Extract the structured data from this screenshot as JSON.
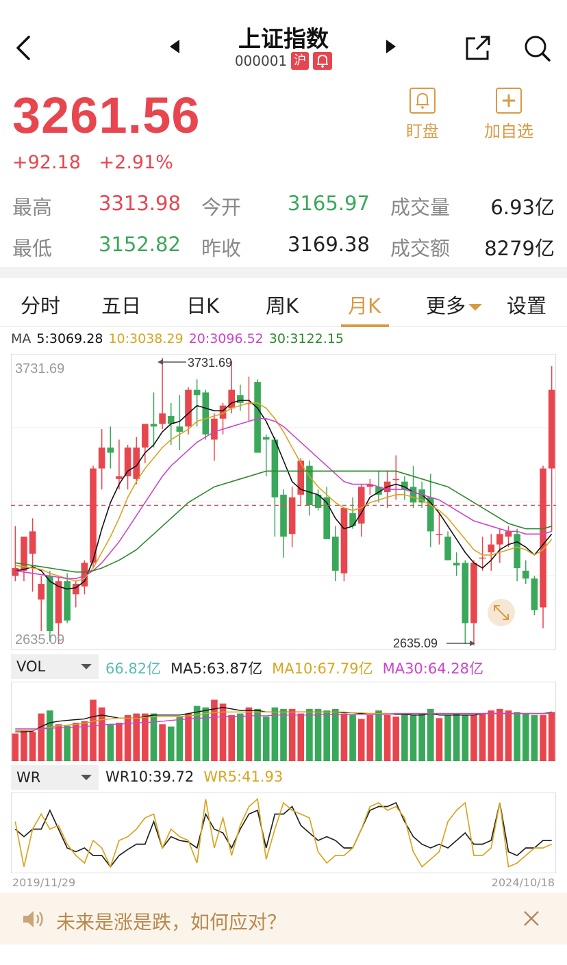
{
  "header": {
    "title": "上证指数",
    "code": "000001",
    "market_badge": "沪"
  },
  "quote": {
    "price": "3261.56",
    "change": "+92.18",
    "change_pct": "+2.91%"
  },
  "actions": {
    "watch": "盯盘",
    "add": "加自选"
  },
  "stats": {
    "high_label": "最高",
    "high": "3313.98",
    "open_label": "今开",
    "open": "3165.97",
    "volume_label": "成交量",
    "volume": "6.93亿",
    "low_label": "最低",
    "low": "3152.82",
    "prev_close_label": "昨收",
    "prev_close": "3169.38",
    "amount_label": "成交额",
    "amount": "8279亿"
  },
  "tabs": [
    "分时",
    "五日",
    "日K",
    "周K",
    "月K",
    "更多",
    "设置"
  ],
  "ma": {
    "title": "MA",
    "ma5": "5:3069.28",
    "ma10": "10:3038.29",
    "ma20": "20:3096.52",
    "ma30": "30:3122.15"
  },
  "colors": {
    "up": "#e8464f",
    "down": "#3aa85a",
    "ma5": "#111111",
    "ma10": "#d9a520",
    "ma20": "#cc44cc",
    "ma30": "#2a8a2a",
    "accent": "#d99a44"
  },
  "chart_data": [
    {
      "type": "candlestick",
      "title": "",
      "y_max_label": "3731.69",
      "y_min_label": "2635.09",
      "high_marker": "3731.69",
      "low_marker": "2635.09",
      "ref_price": 3169.38,
      "ylim": [
        2635.09,
        3731.69
      ],
      "candles": [
        {
          "o": 2900,
          "h": 3090,
          "l": 2880,
          "c": 2930
        },
        {
          "o": 2920,
          "h": 3050,
          "l": 2880,
          "c": 3050
        },
        {
          "o": 2985,
          "h": 3120,
          "l": 2840,
          "c": 3070
        },
        {
          "o": 2810,
          "h": 2900,
          "l": 2690,
          "c": 2870
        },
        {
          "o": 2900,
          "h": 2920,
          "l": 2650,
          "c": 2690
        },
        {
          "o": 2720,
          "h": 2900,
          "l": 2640,
          "c": 2880
        },
        {
          "o": 2880,
          "h": 2910,
          "l": 2720,
          "c": 2730
        },
        {
          "o": 2830,
          "h": 2880,
          "l": 2780,
          "c": 2870
        },
        {
          "o": 2860,
          "h": 2960,
          "l": 2830,
          "c": 2950
        },
        {
          "o": 2950,
          "h": 3320,
          "l": 2930,
          "c": 3310
        },
        {
          "o": 3310,
          "h": 3460,
          "l": 3230,
          "c": 3390
        },
        {
          "o": 3390,
          "h": 3470,
          "l": 3310,
          "c": 3370
        },
        {
          "o": 3270,
          "h": 3420,
          "l": 3230,
          "c": 3280
        },
        {
          "o": 3280,
          "h": 3400,
          "l": 3230,
          "c": 3390
        },
        {
          "o": 3270,
          "h": 3430,
          "l": 3250,
          "c": 3390
        },
        {
          "o": 3390,
          "h": 3480,
          "l": 3330,
          "c": 3480
        },
        {
          "o": 3480,
          "h": 3600,
          "l": 3390,
          "c": 3470
        },
        {
          "o": 3480,
          "h": 3731.69,
          "l": 3460,
          "c": 3520
        },
        {
          "o": 3510,
          "h": 3560,
          "l": 3400,
          "c": 3480
        },
        {
          "o": 3470,
          "h": 3590,
          "l": 3380,
          "c": 3450
        },
        {
          "o": 3470,
          "h": 3620,
          "l": 3440,
          "c": 3610
        },
        {
          "o": 3610,
          "h": 3650,
          "l": 3470,
          "c": 3590
        },
        {
          "o": 3600,
          "h": 3610,
          "l": 3420,
          "c": 3440
        },
        {
          "o": 3420,
          "h": 3520,
          "l": 3340,
          "c": 3500
        },
        {
          "o": 3500,
          "h": 3560,
          "l": 3440,
          "c": 3550
        },
        {
          "o": 3540,
          "h": 3720,
          "l": 3520,
          "c": 3610
        },
        {
          "o": 3590,
          "h": 3630,
          "l": 3530,
          "c": 3560
        },
        {
          "o": 3560,
          "h": 3660,
          "l": 3490,
          "c": 3560
        },
        {
          "o": 3640,
          "h": 3650,
          "l": 3380,
          "c": 3370
        },
        {
          "o": 3430,
          "h": 3440,
          "l": 3280,
          "c": 3420
        },
        {
          "o": 3420,
          "h": 3430,
          "l": 3050,
          "c": 3200
        },
        {
          "o": 3210,
          "h": 3230,
          "l": 2970,
          "c": 3050
        },
        {
          "o": 3060,
          "h": 3240,
          "l": 3010,
          "c": 3200
        },
        {
          "o": 3210,
          "h": 3350,
          "l": 3170,
          "c": 3340
        },
        {
          "o": 3320,
          "h": 3340,
          "l": 3130,
          "c": 3170
        },
        {
          "o": 3210,
          "h": 3230,
          "l": 3150,
          "c": 3160
        },
        {
          "o": 3200,
          "h": 3240,
          "l": 3050,
          "c": 3040
        },
        {
          "o": 3050,
          "h": 3090,
          "l": 2880,
          "c": 2920
        },
        {
          "o": 2910,
          "h": 3160,
          "l": 2880,
          "c": 3160
        },
        {
          "o": 3140,
          "h": 3200,
          "l": 3080,
          "c": 3090
        },
        {
          "o": 3100,
          "h": 3250,
          "l": 3050,
          "c": 3240
        },
        {
          "o": 3240,
          "h": 3270,
          "l": 3210,
          "c": 3250
        },
        {
          "o": 3240,
          "h": 3300,
          "l": 3180,
          "c": 3210
        },
        {
          "o": 3220,
          "h": 3300,
          "l": 3160,
          "c": 3260
        },
        {
          "o": 3270,
          "h": 3360,
          "l": 3190,
          "c": 3270
        },
        {
          "o": 3260,
          "h": 3280,
          "l": 3190,
          "c": 3230
        },
        {
          "o": 3240,
          "h": 3320,
          "l": 3160,
          "c": 3180
        },
        {
          "o": 3230,
          "h": 3260,
          "l": 3160,
          "c": 3180
        },
        {
          "o": 3200,
          "h": 3290,
          "l": 3010,
          "c": 3070
        },
        {
          "o": 3060,
          "h": 3140,
          "l": 3020,
          "c": 3060
        },
        {
          "o": 3050,
          "h": 3070,
          "l": 2970,
          "c": 2960
        },
        {
          "o": 2950,
          "h": 2990,
          "l": 2900,
          "c": 2940
        },
        {
          "o": 2950,
          "h": 2960,
          "l": 2640,
          "c": 2720
        },
        {
          "o": 2720,
          "h": 2960,
          "l": 2635.09,
          "c": 2950
        },
        {
          "o": 2970,
          "h": 3050,
          "l": 2920,
          "c": 2970
        },
        {
          "o": 2990,
          "h": 3060,
          "l": 2920,
          "c": 3020
        },
        {
          "o": 3020,
          "h": 3080,
          "l": 2950,
          "c": 3060
        },
        {
          "o": 3050,
          "h": 3090,
          "l": 3010,
          "c": 3070
        },
        {
          "o": 3060,
          "h": 3080,
          "l": 2880,
          "c": 2930
        },
        {
          "o": 2920,
          "h": 2960,
          "l": 2870,
          "c": 2890
        },
        {
          "o": 2890,
          "h": 2900,
          "l": 2750,
          "c": 2770
        },
        {
          "o": 2780,
          "h": 3320,
          "l": 2700,
          "c": 3310
        },
        {
          "o": 3310,
          "h": 3700,
          "l": 3070,
          "c": 3610
        }
      ],
      "ma_lines": {
        "ma5": [
          2920,
          2925,
          2935,
          2920,
          2880,
          2860,
          2850,
          2855,
          2880,
          2960,
          3080,
          3180,
          3250,
          3300,
          3320,
          3370,
          3400,
          3450,
          3480,
          3490,
          3520,
          3550,
          3540,
          3530,
          3530,
          3560,
          3570,
          3570,
          3540,
          3490,
          3420,
          3340,
          3260,
          3230,
          3220,
          3210,
          3180,
          3120,
          3080,
          3090,
          3140,
          3200,
          3220,
          3240,
          3250,
          3240,
          3220,
          3210,
          3180,
          3140,
          3090,
          3040,
          2990,
          2950,
          2930,
          2960,
          3000,
          3020,
          3030,
          3010,
          2980,
          3020,
          3060
        ],
        "ma10": [
          2940,
          2935,
          2930,
          2925,
          2910,
          2900,
          2890,
          2880,
          2890,
          2930,
          2990,
          3050,
          3120,
          3200,
          3260,
          3310,
          3350,
          3390,
          3420,
          3440,
          3460,
          3490,
          3500,
          3510,
          3520,
          3540,
          3550,
          3560,
          3560,
          3540,
          3500,
          3450,
          3390,
          3330,
          3280,
          3240,
          3210,
          3180,
          3160,
          3150,
          3160,
          3180,
          3190,
          3200,
          3210,
          3210,
          3200,
          3190,
          3170,
          3150,
          3120,
          3080,
          3040,
          3000,
          2980,
          2980,
          2990,
          3000,
          3010,
          3000,
          2980,
          3000,
          3040
        ],
        "ma20": [
          2920,
          2915,
          2910,
          2905,
          2900,
          2895,
          2890,
          2890,
          2900,
          2920,
          2950,
          2990,
          3030,
          3080,
          3130,
          3180,
          3230,
          3280,
          3320,
          3350,
          3380,
          3410,
          3430,
          3450,
          3460,
          3470,
          3480,
          3490,
          3500,
          3500,
          3490,
          3470,
          3440,
          3410,
          3380,
          3350,
          3320,
          3290,
          3260,
          3250,
          3250,
          3250,
          3240,
          3230,
          3230,
          3230,
          3220,
          3210,
          3200,
          3190,
          3170,
          3150,
          3130,
          3110,
          3100,
          3090,
          3080,
          3070,
          3070,
          3060,
          3060,
          3060,
          3070
        ],
        "ma30": [
          2950,
          2945,
          2940,
          2935,
          2930,
          2925,
          2920,
          2915,
          2915,
          2920,
          2930,
          2945,
          2960,
          2980,
          3000,
          3030,
          3060,
          3090,
          3120,
          3150,
          3180,
          3200,
          3220,
          3240,
          3250,
          3260,
          3270,
          3280,
          3290,
          3300,
          3300,
          3300,
          3300,
          3300,
          3300,
          3300,
          3300,
          3300,
          3300,
          3300,
          3300,
          3300,
          3300,
          3300,
          3300,
          3290,
          3280,
          3270,
          3260,
          3250,
          3240,
          3220,
          3200,
          3180,
          3160,
          3140,
          3120,
          3100,
          3090,
          3080,
          3080,
          3080,
          3090
        ]
      }
    },
    {
      "type": "bar",
      "title": "",
      "indicator": "VOL",
      "legend": {
        "value": "66.82亿",
        "ma5": "MA5:63.87亿",
        "ma10": "MA10:67.79亿",
        "ma30": "MA30:64.28亿"
      },
      "ylim": [
        0,
        100
      ],
      "values": [
        36,
        40,
        38,
        62,
        66,
        48,
        46,
        50,
        52,
        80,
        70,
        48,
        50,
        60,
        62,
        62,
        62,
        48,
        45,
        58,
        62,
        72,
        70,
        80,
        75,
        60,
        62,
        70,
        68,
        58,
        70,
        68,
        68,
        62,
        68,
        68,
        66,
        68,
        62,
        60,
        55,
        60,
        66,
        60,
        58,
        62,
        60,
        62,
        68,
        56,
        60,
        62,
        60,
        60,
        62,
        66,
        68,
        66,
        64,
        62,
        60,
        60,
        64
      ],
      "ma5": [
        38,
        38,
        39,
        45,
        50,
        52,
        53,
        54,
        55,
        58,
        60,
        58,
        56,
        56,
        56,
        58,
        60,
        60,
        60,
        60,
        62,
        64,
        66,
        68,
        70,
        68,
        66,
        66,
        66,
        64,
        64,
        64,
        64,
        64,
        64,
        64,
        64,
        64,
        63,
        63,
        62,
        62,
        62,
        62,
        61,
        61,
        60,
        60,
        62,
        60,
        60,
        60,
        60,
        60,
        62,
        62,
        62,
        62,
        62,
        62,
        62,
        62,
        64
      ],
      "ma10": [
        40,
        40,
        40,
        42,
        44,
        46,
        47,
        48,
        49,
        52,
        54,
        55,
        56,
        56,
        56,
        57,
        58,
        58,
        58,
        58,
        59,
        60,
        62,
        63,
        64,
        64,
        64,
        64,
        64,
        64,
        64,
        64,
        64,
        64,
        64,
        64,
        64,
        64,
        64,
        63,
        63,
        62,
        62,
        62,
        62,
        62,
        62,
        62,
        62,
        62,
        62,
        62,
        62,
        62,
        62,
        62,
        62,
        62,
        62,
        62,
        62,
        62,
        63
      ],
      "ma30": [
        42,
        42,
        42,
        42,
        43,
        43,
        44,
        44,
        45,
        46,
        47,
        48,
        48,
        49,
        50,
        50,
        51,
        52,
        53,
        54,
        55,
        56,
        56,
        57,
        58,
        58,
        58,
        59,
        59,
        59,
        60,
        60,
        60,
        60,
        60,
        60,
        61,
        61,
        61,
        61,
        61,
        61,
        61,
        61,
        62,
        62,
        62,
        62,
        62,
        62,
        62,
        62,
        62,
        62,
        62,
        62,
        62,
        62,
        62,
        62,
        62,
        62,
        62
      ]
    },
    {
      "type": "line",
      "title": "",
      "indicator": "WR",
      "legend": {
        "wr10": "WR10:39.72",
        "wr5": "WR5:41.93"
      },
      "ylim": [
        0,
        100
      ],
      "series": [
        {
          "name": "WR10:39.72",
          "values": [
            55,
            45,
            55,
            55,
            80,
            55,
            30,
            25,
            30,
            20,
            20,
            5,
            20,
            28,
            35,
            35,
            65,
            30,
            45,
            40,
            38,
            30,
            75,
            55,
            50,
            30,
            55,
            75,
            80,
            30,
            75,
            75,
            85,
            60,
            50,
            40,
            45,
            40,
            30,
            30,
            55,
            80,
            85,
            85,
            90,
            65,
            45,
            35,
            30,
            35,
            30,
            40,
            50,
            35,
            35,
            40,
            90,
            25,
            20,
            30,
            30,
            40,
            40
          ]
        },
        {
          "name": "WR5:41.93",
          "values": [
            65,
            5,
            55,
            75,
            55,
            60,
            35,
            20,
            10,
            40,
            30,
            5,
            40,
            45,
            55,
            70,
            75,
            30,
            55,
            45,
            40,
            10,
            95,
            30,
            70,
            20,
            60,
            85,
            95,
            15,
            55,
            90,
            80,
            75,
            70,
            25,
            10,
            20,
            20,
            30,
            55,
            85,
            90,
            80,
            85,
            70,
            25,
            5,
            15,
            25,
            65,
            80,
            90,
            20,
            20,
            30,
            90,
            5,
            10,
            20,
            30,
            30,
            35
          ]
        }
      ],
      "x_start_label": "2019/11/29",
      "x_end_label": "2024/10/18"
    }
  ],
  "banner": {
    "text": "未来是涨是跌，如何应对？"
  },
  "icons": [
    "back-icon",
    "prev-arrow-icon",
    "next-arrow-icon",
    "share-icon",
    "search-icon",
    "bell-icon",
    "plus-icon",
    "speaker-icon",
    "close-icon",
    "expand-icon"
  ]
}
